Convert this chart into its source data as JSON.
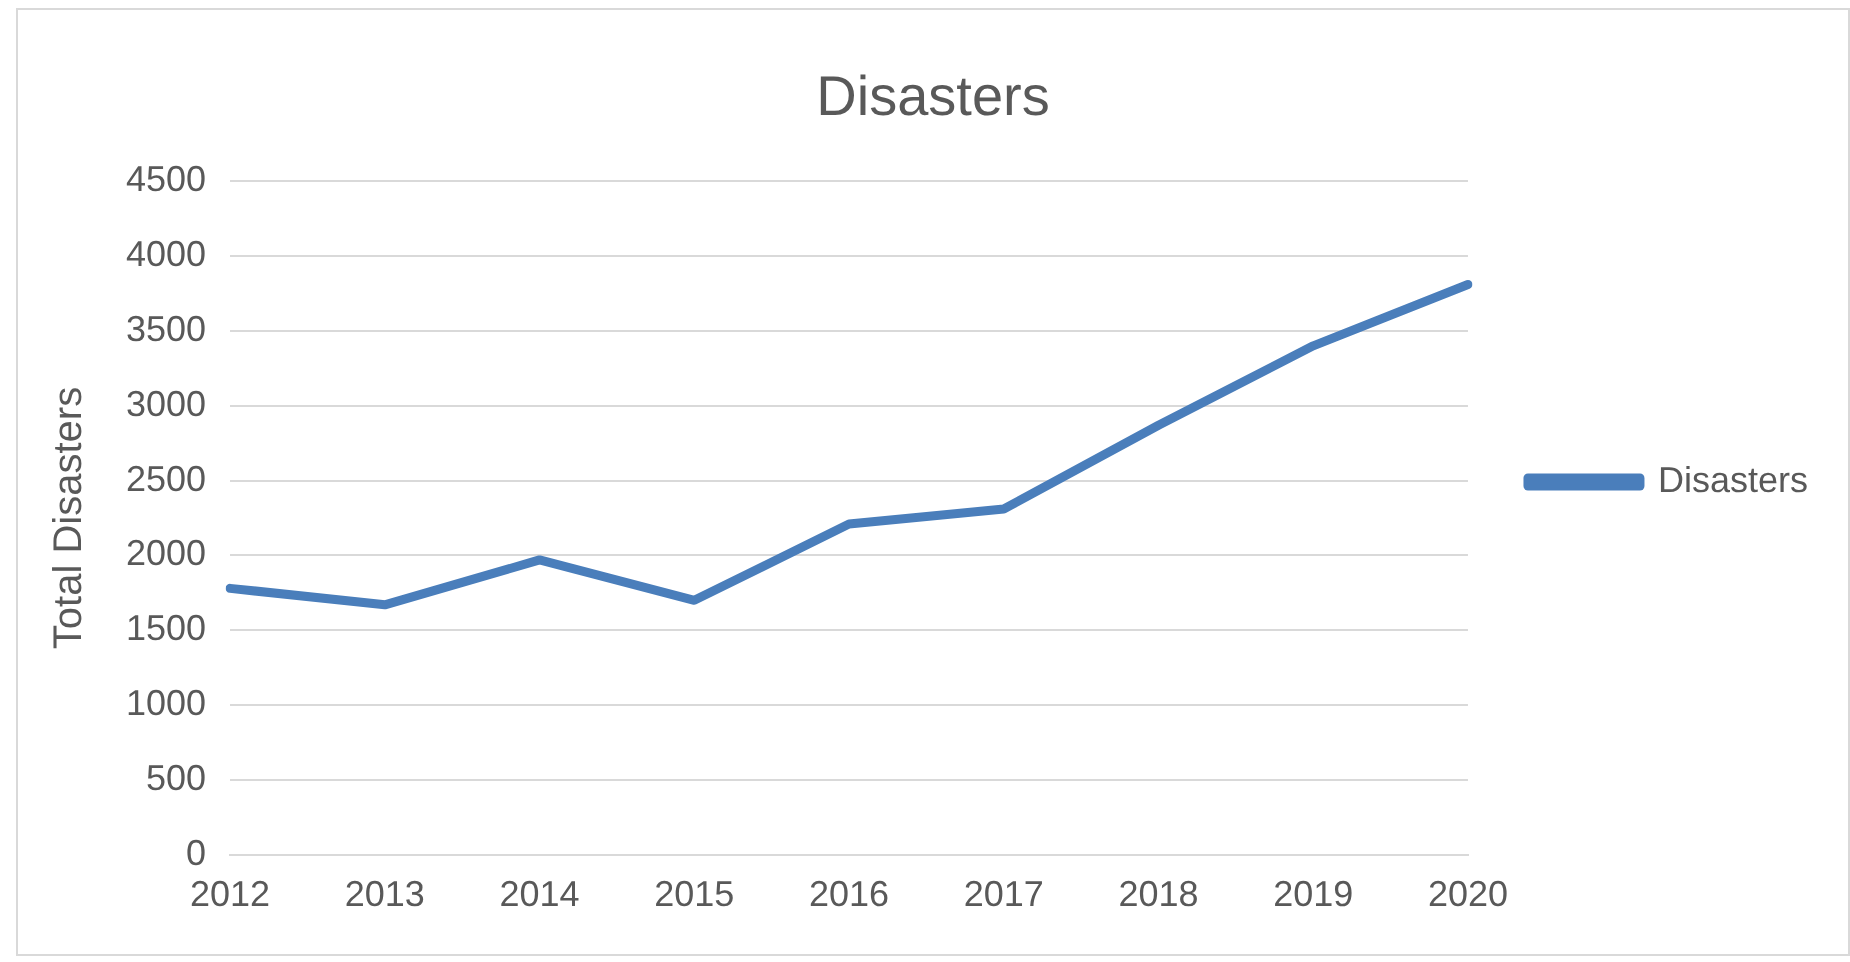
{
  "chart_data": {
    "type": "line",
    "title": "Disasters",
    "ylabel": "Total Disasters",
    "categories": [
      "2012",
      "2013",
      "2014",
      "2015",
      "2016",
      "2017",
      "2018",
      "2019",
      "2020"
    ],
    "series": [
      {
        "name": "Disasters",
        "color": "#4a7ebb",
        "values": [
          1780,
          1670,
          1970,
          1700,
          2210,
          2310,
          2870,
          3400,
          3810
        ]
      }
    ],
    "ylim": [
      0,
      4500
    ],
    "yticks": [
      0,
      500,
      1000,
      1500,
      2000,
      2500,
      3000,
      3500,
      4000,
      4500
    ],
    "grid": "y",
    "legend": "right",
    "marker": "none",
    "line_style": "solid"
  }
}
